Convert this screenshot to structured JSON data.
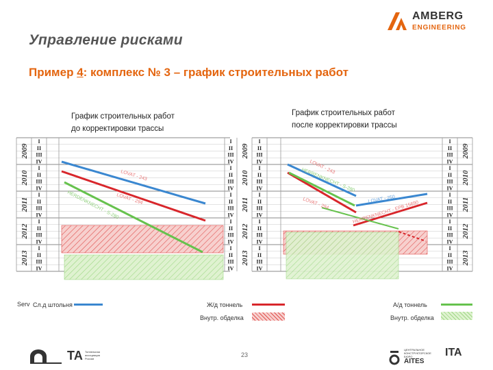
{
  "title": "Управление рисками",
  "subtitle": {
    "prefix": "Пример ",
    "num": "4",
    "suffix": ": комплекс № 3 – график строительных работ"
  },
  "logo": {
    "name": "AMBERG",
    "sub": "ENGINEERING"
  },
  "captions": {
    "left": [
      "График строительных работ",
      "до корректировки трассы"
    ],
    "right": [
      "График строительных работ",
      "после корректировки трассы"
    ]
  },
  "years": [
    "2009",
    "2010",
    "2011",
    "2012",
    "2013"
  ],
  "quarters": [
    "I",
    "II",
    "III",
    "IV"
  ],
  "annotations": {
    "left": {
      "blue": "LOVAT - 243",
      "red": "LOVAT - 294",
      "green": "HERDENKNECHT - S-280"
    },
    "right": {
      "blue": "LOVAT - 243",
      "red": "LOVAT - 294",
      "green": "HERRENKNECHT - S-280",
      "blue2": "LOVAT - 250",
      "red2": "HERRENKNECHT - EPB 15690"
    }
  },
  "legend": {
    "serv_prefix": "Serv",
    "blue": "Сл.д штольня",
    "red": "Ж/д тоннель",
    "green": "А/д тоннель",
    "hatch_red": "Внутр. обделка",
    "hatch_green": "Внутр. обделка"
  },
  "colors": {
    "accent": "#e4650f",
    "blue": "#3a87d0",
    "red": "#d8262b",
    "green": "#66c24d",
    "hatch_red": "#f2b3b0",
    "hatch_green": "#cfe9bb"
  },
  "page_number": "23",
  "footer": {
    "left_org": [
      "Тоннельная",
      "ассоциация",
      "России"
    ],
    "left_abbr": "ТА",
    "right_org": [
      "ЦЕНТРАЛЬНОЕ",
      "КОНСТРУКТОРСКОЕ",
      "БЮРО"
    ],
    "right_abbr": "AITES",
    "right_ita": "ITA"
  }
}
